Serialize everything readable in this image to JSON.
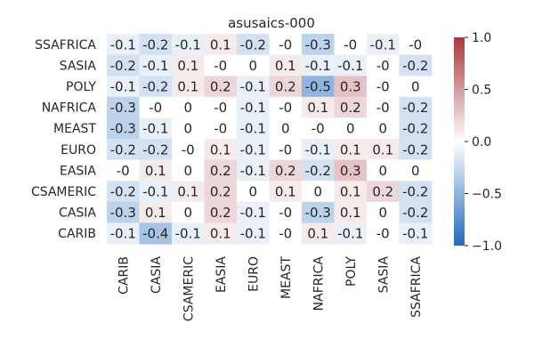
{
  "chart_data": {
    "type": "heatmap",
    "title": "asusaics-000",
    "xlabel": "",
    "ylabel": "",
    "x_categories": [
      "CARIB",
      "CASIA",
      "CSAMERIC",
      "EASIA",
      "EURO",
      "MEAST",
      "NAFRICA",
      "POLY",
      "SASIA",
      "SSAFRICA"
    ],
    "y_categories": [
      "SSAFRICA",
      "SASIA",
      "POLY",
      "NAFRICA",
      "MEAST",
      "EURO",
      "EASIA",
      "CSAMERIC",
      "CASIA",
      "CARIB"
    ],
    "values": [
      [
        -0.1,
        -0.2,
        -0.1,
        0.1,
        -0.2,
        -0.0,
        -0.3,
        -0.0,
        -0.1,
        -0.0
      ],
      [
        -0.2,
        -0.1,
        0.1,
        -0.0,
        0.0,
        0.1,
        -0.1,
        -0.1,
        -0.0,
        -0.2
      ],
      [
        -0.1,
        -0.2,
        0.1,
        0.2,
        -0.1,
        0.2,
        -0.5,
        0.3,
        -0.0,
        0.0
      ],
      [
        -0.3,
        -0.0,
        0.0,
        -0.0,
        -0.1,
        -0.0,
        0.1,
        0.2,
        -0.0,
        -0.2
      ],
      [
        -0.3,
        -0.1,
        0.0,
        -0.0,
        -0.1,
        0.0,
        -0.0,
        0.0,
        0.0,
        -0.2
      ],
      [
        -0.2,
        -0.2,
        -0.0,
        0.1,
        -0.1,
        -0.0,
        -0.1,
        0.1,
        0.1,
        -0.2
      ],
      [
        -0.0,
        0.1,
        0.0,
        0.2,
        -0.1,
        0.2,
        -0.2,
        0.3,
        0.0,
        0.0
      ],
      [
        -0.2,
        -0.1,
        0.1,
        0.2,
        0.0,
        0.1,
        0.0,
        0.1,
        0.2,
        -0.2
      ],
      [
        -0.3,
        0.1,
        0.0,
        0.2,
        -0.1,
        -0.0,
        -0.3,
        0.1,
        0.0,
        -0.2
      ],
      [
        -0.1,
        -0.4,
        -0.1,
        0.1,
        -0.1,
        -0.0,
        0.1,
        -0.1,
        -0.0,
        -0.1
      ]
    ],
    "cell_labels": [
      [
        "-0.1",
        "-0.2",
        "-0.1",
        "0.1",
        "-0.2",
        "-0",
        "-0.3",
        "-0",
        "-0.1",
        "-0"
      ],
      [
        "-0.2",
        "-0.1",
        "0.1",
        "-0",
        "0",
        "0.1",
        "-0.1",
        "-0.1",
        "-0",
        "-0.2"
      ],
      [
        "-0.1",
        "-0.2",
        "0.1",
        "0.2",
        "-0.1",
        "0.2",
        "-0.5",
        "0.3",
        "-0",
        "0"
      ],
      [
        "-0.3",
        "-0",
        "0",
        "-0",
        "-0.1",
        "-0",
        "0.1",
        "0.2",
        "-0",
        "-0.2"
      ],
      [
        "-0.3",
        "-0.1",
        "0",
        "-0",
        "-0.1",
        "0",
        "-0",
        "0",
        "0",
        "-0.2"
      ],
      [
        "-0.2",
        "-0.2",
        "-0",
        "0.1",
        "-0.1",
        "-0",
        "-0.1",
        "0.1",
        "0.1",
        "-0.2"
      ],
      [
        "-0",
        "0.1",
        "0",
        "0.2",
        "-0.1",
        "0.2",
        "-0.2",
        "0.3",
        "0",
        "0"
      ],
      [
        "-0.2",
        "-0.1",
        "0.1",
        "0.2",
        "0",
        "0.1",
        "0",
        "0.1",
        "0.2",
        "-0.2"
      ],
      [
        "-0.3",
        "0.1",
        "0",
        "0.2",
        "-0.1",
        "-0",
        "-0.3",
        "0.1",
        "0",
        "-0.2"
      ],
      [
        "-0.1",
        "-0.4",
        "-0.1",
        "0.1",
        "-0.1",
        "-0",
        "0.1",
        "-0.1",
        "-0",
        "-0.1"
      ]
    ],
    "colorbar": {
      "range": [
        -1.0,
        1.0
      ],
      "ticks": [
        -1.0,
        -0.5,
        0.0,
        0.5,
        1.0
      ],
      "tick_labels": [
        "−1.0",
        "−0.5",
        "0.0",
        "0.5",
        "1.0"
      ],
      "colormap": "vlag",
      "color_low": "#2369bd",
      "color_mid": "#ffffff",
      "color_high": "#a9373b",
      "placement": "right"
    },
    "x_tick_rotation": "vertical",
    "grid": false
  }
}
